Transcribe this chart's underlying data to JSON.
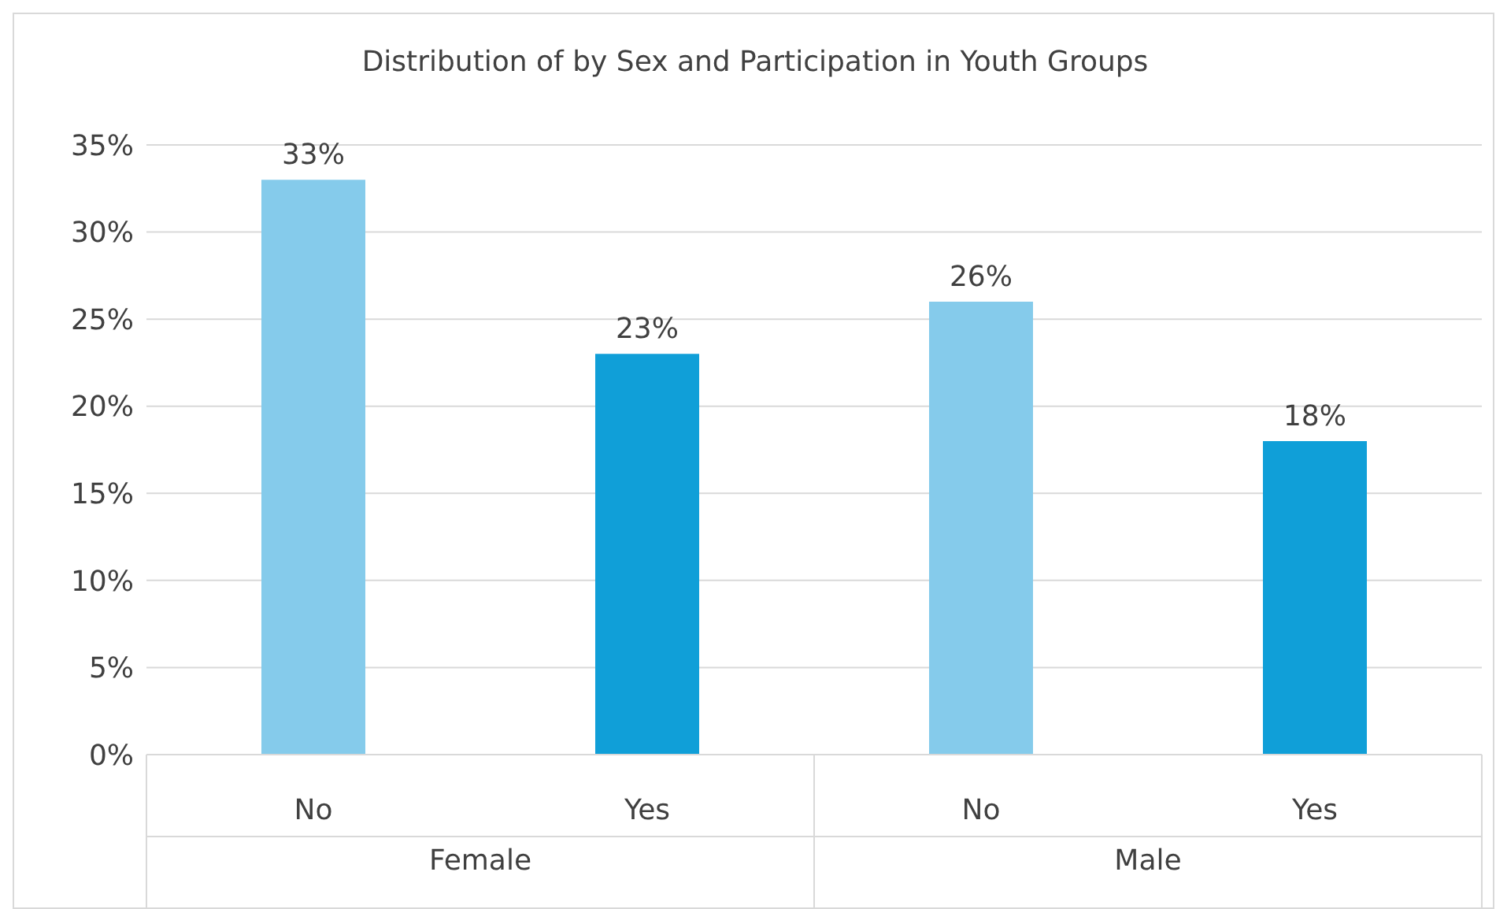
{
  "chart_data": {
    "type": "bar",
    "title": "Distribution of by Sex and Participation in Youth Groups",
    "categories": [
      "No",
      "Yes",
      "No",
      "Yes"
    ],
    "values": [
      33,
      23,
      26,
      18
    ],
    "colors": [
      "#85cbeb",
      "#109fd8",
      "#85cbeb",
      "#109fd8"
    ],
    "value_labels": [
      "33%",
      "23%",
      "26%",
      "18%"
    ],
    "ylim": [
      0,
      35
    ],
    "yticks": [
      {
        "value": 0,
        "label": "0%"
      },
      {
        "value": 5,
        "label": "5%"
      },
      {
        "value": 10,
        "label": "10%"
      },
      {
        "value": 15,
        "label": "15%"
      },
      {
        "value": 20,
        "label": "20%"
      },
      {
        "value": 25,
        "label": "25%"
      },
      {
        "value": 30,
        "label": "30%"
      },
      {
        "value": 35,
        "label": "35%"
      }
    ],
    "grid": "y",
    "annotations": [
      "Female",
      "Male"
    ]
  }
}
